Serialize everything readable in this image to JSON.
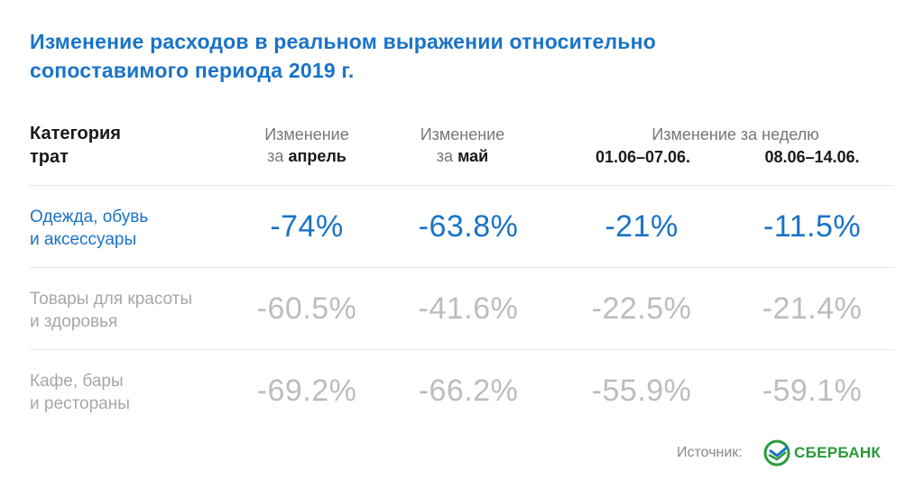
{
  "title_lines": [
    "Изменение расходов в реальном выражении относительно",
    "сопоставимого периода 2019 г."
  ],
  "header": {
    "category_lines": [
      "Категория",
      "трат"
    ],
    "april_line1": "Изменение",
    "april_prefix": "за",
    "april_bold": "апрель",
    "may_line1": "Изменение",
    "may_prefix": "за",
    "may_bold": "май",
    "week": "Изменение за неделю",
    "week1": "01.06–07.06.",
    "week2": "08.06–14.06."
  },
  "chart_data": {
    "type": "table",
    "title": "Изменение расходов в реальном выражении относительно сопоставимого периода 2019 г.",
    "columns": [
      "Категория трат",
      "Изменение за апрель",
      "Изменение за май",
      "Изменение за неделю 01.06–07.06.",
      "Изменение за неделю 08.06–14.06."
    ],
    "rows": [
      {
        "category_lines": [
          "Одежда, обувь",
          "и аксессуары"
        ],
        "highlight": true,
        "values": [
          "-74%",
          "-63.8%",
          "-21%",
          "-11.5%"
        ]
      },
      {
        "category_lines": [
          "Товары для красоты",
          "и здоровья"
        ],
        "highlight": false,
        "values": [
          "-60.5%",
          "-41.6%",
          "-22.5%",
          "-21.4%"
        ]
      },
      {
        "category_lines": [
          "Кафе, бары",
          "и рестораны"
        ],
        "highlight": false,
        "values": [
          "-69.2%",
          "-66.2%",
          "-55.9%",
          "-59.1%"
        ]
      }
    ]
  },
  "source": {
    "label": "Источник:",
    "brand": "СБЕРБАНК"
  },
  "colors": {
    "accent": "#1a73c8",
    "muted_value": "#bdbdbd",
    "brand_green": "#2a9a3a"
  }
}
